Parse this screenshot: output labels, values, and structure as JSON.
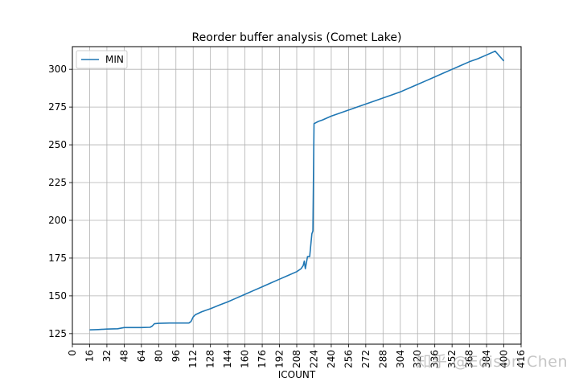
{
  "watermark": "知乎 @Edison Chen",
  "chart_data": {
    "type": "line",
    "title": "Reorder buffer analysis (Comet Lake)",
    "xlabel": "ICOUNT",
    "ylabel": "",
    "xlim": [
      0,
      416
    ],
    "ylim": [
      118,
      315
    ],
    "xticks": [
      0,
      16,
      32,
      48,
      64,
      80,
      96,
      112,
      128,
      144,
      160,
      176,
      192,
      208,
      224,
      240,
      256,
      272,
      288,
      304,
      320,
      336,
      352,
      368,
      384,
      400,
      416
    ],
    "yticks": [
      125,
      150,
      175,
      200,
      225,
      250,
      275,
      300
    ],
    "grid": true,
    "legend_position": "top-left",
    "colors": {
      "line": "#1f77b4",
      "grid": "#b0b0b0"
    },
    "series": [
      {
        "name": "MIN",
        "x": [
          16,
          24,
          32,
          42,
          48,
          56,
          64,
          72,
          74,
          76,
          80,
          90,
          100,
          108,
          110,
          112,
          114,
          120,
          128,
          136,
          144,
          152,
          160,
          168,
          176,
          184,
          192,
          200,
          208,
          212,
          214,
          215,
          216,
          218,
          220,
          222,
          223,
          224,
          228,
          232,
          240,
          248,
          256,
          264,
          272,
          280,
          288,
          296,
          304,
          312,
          320,
          328,
          336,
          344,
          352,
          360,
          368,
          376,
          384,
          392,
          400
        ],
        "y": [
          127.5,
          127.7,
          128,
          128.2,
          129,
          129,
          129,
          129.2,
          130,
          131.5,
          131.8,
          132,
          132,
          132,
          133,
          136,
          137.5,
          139.5,
          141.5,
          143.8,
          146,
          148.5,
          151,
          153.5,
          156,
          158.5,
          161,
          163.5,
          166,
          168,
          170,
          173,
          168,
          176,
          176,
          191,
          193,
          264,
          265.5,
          266.5,
          269,
          271,
          273,
          275,
          277,
          279,
          281,
          283,
          285,
          287.5,
          290,
          292.5,
          295,
          297.5,
          300,
          302.5,
          305,
          307,
          309.5,
          312,
          305.5
        ]
      }
    ]
  }
}
